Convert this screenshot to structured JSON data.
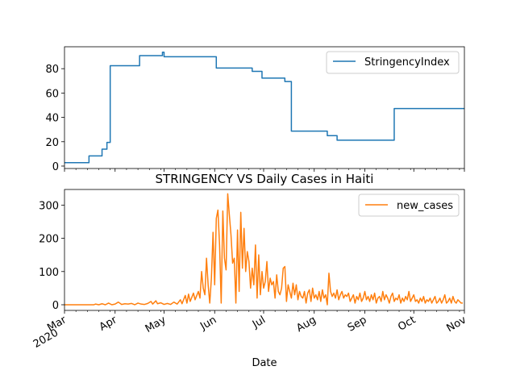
{
  "chart_data": [
    {
      "type": "line",
      "title": "",
      "xlabel": "",
      "ylabel": "",
      "xlim": [
        "2020-03-01",
        "2020-11-01"
      ],
      "ylim": [
        -2,
        98
      ],
      "yticks": [
        0,
        20,
        40,
        60,
        80
      ],
      "grid": false,
      "legend": "top-right",
      "series": [
        {
          "name": "StringencyIndex",
          "color": "#1f77b4",
          "step": true,
          "points": [
            [
              "2020-03-01",
              2.78
            ],
            [
              "2020-03-16",
              8.33
            ],
            [
              "2020-03-24",
              13.89
            ],
            [
              "2020-03-27",
              19.44
            ],
            [
              "2020-03-29",
              82.41
            ],
            [
              "2020-04-16",
              90.74
            ],
            [
              "2020-04-30",
              93.52
            ],
            [
              "2020-05-01",
              89.81
            ],
            [
              "2020-06-02",
              80.56
            ],
            [
              "2020-06-24",
              77.78
            ],
            [
              "2020-06-30",
              72.22
            ],
            [
              "2020-07-14",
              69.44
            ],
            [
              "2020-07-18",
              28.7
            ],
            [
              "2020-08-09",
              25.0
            ],
            [
              "2020-08-15",
              21.3
            ],
            [
              "2020-09-19",
              47.22
            ],
            [
              "2020-11-01",
              47.22
            ]
          ]
        }
      ]
    },
    {
      "type": "line",
      "title": "STRINGENCY VS Daily Cases in Haiti",
      "xlabel": "Date",
      "ylabel": "",
      "xlim": [
        "2020-03-01",
        "2020-11-01"
      ],
      "ylim": [
        -17,
        347
      ],
      "yticks": [
        0,
        100,
        200,
        300
      ],
      "xticks": [
        {
          "date": "2020-03-01",
          "label": "Mar",
          "sublabel": "2020"
        },
        {
          "date": "2020-04-01",
          "label": "Apr"
        },
        {
          "date": "2020-05-01",
          "label": "May"
        },
        {
          "date": "2020-06-01",
          "label": "Jun"
        },
        {
          "date": "2020-07-01",
          "label": "Jul"
        },
        {
          "date": "2020-08-01",
          "label": "Aug"
        },
        {
          "date": "2020-09-01",
          "label": "Sep"
        },
        {
          "date": "2020-10-01",
          "label": "Oct"
        },
        {
          "date": "2020-11-01",
          "label": "Nov"
        }
      ],
      "grid": false,
      "legend": "top-right",
      "series": [
        {
          "name": "new_cases",
          "color": "#ff7f0e",
          "points": [
            [
              "2020-03-01",
              0
            ],
            [
              "2020-03-19",
              0
            ],
            [
              "2020-03-20",
              2
            ],
            [
              "2020-03-22",
              0
            ],
            [
              "2020-03-24",
              3
            ],
            [
              "2020-03-26",
              0
            ],
            [
              "2020-03-28",
              5
            ],
            [
              "2020-03-30",
              0
            ],
            [
              "2020-04-01",
              2
            ],
            [
              "2020-04-03",
              8
            ],
            [
              "2020-04-05",
              1
            ],
            [
              "2020-04-07",
              3
            ],
            [
              "2020-04-09",
              2
            ],
            [
              "2020-04-11",
              4
            ],
            [
              "2020-04-13",
              0
            ],
            [
              "2020-04-15",
              5
            ],
            [
              "2020-04-17",
              2
            ],
            [
              "2020-04-19",
              1
            ],
            [
              "2020-04-21",
              4
            ],
            [
              "2020-04-23",
              10
            ],
            [
              "2020-04-24",
              2
            ],
            [
              "2020-04-26",
              12
            ],
            [
              "2020-04-27",
              3
            ],
            [
              "2020-04-29",
              6
            ],
            [
              "2020-05-01",
              1
            ],
            [
              "2020-05-03",
              4
            ],
            [
              "2020-05-05",
              1
            ],
            [
              "2020-05-07",
              8
            ],
            [
              "2020-05-09",
              2
            ],
            [
              "2020-05-11",
              15
            ],
            [
              "2020-05-12",
              3
            ],
            [
              "2020-05-14",
              28
            ],
            [
              "2020-05-15",
              5
            ],
            [
              "2020-05-16",
              32
            ],
            [
              "2020-05-17",
              10
            ],
            [
              "2020-05-19",
              35
            ],
            [
              "2020-05-20",
              15
            ],
            [
              "2020-05-22",
              40
            ],
            [
              "2020-05-23",
              20
            ],
            [
              "2020-05-24",
              100
            ],
            [
              "2020-05-25",
              50
            ],
            [
              "2020-05-26",
              30
            ],
            [
              "2020-05-27",
              140
            ],
            [
              "2020-05-28",
              60
            ],
            [
              "2020-05-29",
              5
            ],
            [
              "2020-05-30",
              80
            ],
            [
              "2020-05-31",
              218
            ],
            [
              "2020-06-01",
              60
            ],
            [
              "2020-06-02",
              260
            ],
            [
              "2020-06-03",
              285
            ],
            [
              "2020-06-04",
              180
            ],
            [
              "2020-06-05",
              5
            ],
            [
              "2020-06-06",
              282
            ],
            [
              "2020-06-07",
              140
            ],
            [
              "2020-06-08",
              105
            ],
            [
              "2020-06-09",
              334
            ],
            [
              "2020-06-10",
              270
            ],
            [
              "2020-06-11",
              210
            ],
            [
              "2020-06-12",
              125
            ],
            [
              "2020-06-13",
              140
            ],
            [
              "2020-06-14",
              5
            ],
            [
              "2020-06-15",
              225
            ],
            [
              "2020-06-16",
              40
            ],
            [
              "2020-06-17",
              278
            ],
            [
              "2020-06-18",
              110
            ],
            [
              "2020-06-19",
              230
            ],
            [
              "2020-06-20",
              100
            ],
            [
              "2020-06-21",
              160
            ],
            [
              "2020-06-22",
              130
            ],
            [
              "2020-06-23",
              50
            ],
            [
              "2020-06-24",
              110
            ],
            [
              "2020-06-25",
              60
            ],
            [
              "2020-06-26",
              180
            ],
            [
              "2020-06-27",
              20
            ],
            [
              "2020-06-28",
              150
            ],
            [
              "2020-06-29",
              30
            ],
            [
              "2020-06-30",
              100
            ],
            [
              "2020-07-01",
              50
            ],
            [
              "2020-07-02",
              70
            ],
            [
              "2020-07-03",
              130
            ],
            [
              "2020-07-04",
              40
            ],
            [
              "2020-07-05",
              80
            ],
            [
              "2020-07-06",
              60
            ],
            [
              "2020-07-07",
              70
            ],
            [
              "2020-07-08",
              20
            ],
            [
              "2020-07-09",
              90
            ],
            [
              "2020-07-10",
              40
            ],
            [
              "2020-07-11",
              30
            ],
            [
              "2020-07-12",
              50
            ],
            [
              "2020-07-13",
              110
            ],
            [
              "2020-07-14",
              115
            ],
            [
              "2020-07-15",
              10
            ],
            [
              "2020-07-16",
              60
            ],
            [
              "2020-07-17",
              40
            ],
            [
              "2020-07-18",
              20
            ],
            [
              "2020-07-19",
              65
            ],
            [
              "2020-07-20",
              30
            ],
            [
              "2020-07-21",
              60
            ],
            [
              "2020-07-22",
              15
            ],
            [
              "2020-07-23",
              40
            ],
            [
              "2020-07-24",
              25
            ],
            [
              "2020-07-25",
              20
            ],
            [
              "2020-07-26",
              40
            ],
            [
              "2020-07-27",
              5
            ],
            [
              "2020-07-28",
              35
            ],
            [
              "2020-07-29",
              45
            ],
            [
              "2020-07-30",
              10
            ],
            [
              "2020-07-31",
              50
            ],
            [
              "2020-08-01",
              20
            ],
            [
              "2020-08-02",
              30
            ],
            [
              "2020-08-03",
              15
            ],
            [
              "2020-08-04",
              40
            ],
            [
              "2020-08-05",
              10
            ],
            [
              "2020-08-06",
              45
            ],
            [
              "2020-08-07",
              20
            ],
            [
              "2020-08-08",
              30
            ],
            [
              "2020-08-09",
              0
            ],
            [
              "2020-08-10",
              95
            ],
            [
              "2020-08-11",
              40
            ],
            [
              "2020-08-12",
              25
            ],
            [
              "2020-08-13",
              35
            ],
            [
              "2020-08-14",
              20
            ],
            [
              "2020-08-15",
              45
            ],
            [
              "2020-08-16",
              15
            ],
            [
              "2020-08-17",
              30
            ],
            [
              "2020-08-18",
              40
            ],
            [
              "2020-08-19",
              20
            ],
            [
              "2020-08-20",
              30
            ],
            [
              "2020-08-21",
              25
            ],
            [
              "2020-08-22",
              35
            ],
            [
              "2020-08-23",
              10
            ],
            [
              "2020-08-24",
              20
            ],
            [
              "2020-08-25",
              30
            ],
            [
              "2020-08-26",
              5
            ],
            [
              "2020-08-27",
              25
            ],
            [
              "2020-08-28",
              15
            ],
            [
              "2020-08-29",
              35
            ],
            [
              "2020-08-30",
              10
            ],
            [
              "2020-08-31",
              20
            ],
            [
              "2020-09-01",
              40
            ],
            [
              "2020-09-02",
              15
            ],
            [
              "2020-09-03",
              25
            ],
            [
              "2020-09-04",
              10
            ],
            [
              "2020-09-05",
              30
            ],
            [
              "2020-09-06",
              15
            ],
            [
              "2020-09-07",
              35
            ],
            [
              "2020-09-08",
              5
            ],
            [
              "2020-09-09",
              20
            ],
            [
              "2020-09-10",
              25
            ],
            [
              "2020-09-11",
              10
            ],
            [
              "2020-09-12",
              40
            ],
            [
              "2020-09-13",
              15
            ],
            [
              "2020-09-14",
              30
            ],
            [
              "2020-09-15",
              20
            ],
            [
              "2020-09-16",
              5
            ],
            [
              "2020-09-17",
              25
            ],
            [
              "2020-09-18",
              35
            ],
            [
              "2020-09-19",
              10
            ],
            [
              "2020-09-20",
              20
            ],
            [
              "2020-09-21",
              15
            ],
            [
              "2020-09-22",
              30
            ],
            [
              "2020-09-23",
              5
            ],
            [
              "2020-09-24",
              20
            ],
            [
              "2020-09-25",
              10
            ],
            [
              "2020-09-26",
              25
            ],
            [
              "2020-09-27",
              15
            ],
            [
              "2020-09-28",
              40
            ],
            [
              "2020-09-29",
              10
            ],
            [
              "2020-09-30",
              20
            ],
            [
              "2020-10-01",
              30
            ],
            [
              "2020-10-02",
              10
            ],
            [
              "2020-10-03",
              15
            ],
            [
              "2020-10-04",
              5
            ],
            [
              "2020-10-05",
              20
            ],
            [
              "2020-10-06",
              10
            ],
            [
              "2020-10-07",
              25
            ],
            [
              "2020-10-08",
              5
            ],
            [
              "2020-10-09",
              15
            ],
            [
              "2020-10-10",
              10
            ],
            [
              "2020-10-11",
              20
            ],
            [
              "2020-10-12",
              5
            ],
            [
              "2020-10-13",
              15
            ],
            [
              "2020-10-14",
              25
            ],
            [
              "2020-10-15",
              5
            ],
            [
              "2020-10-16",
              10
            ],
            [
              "2020-10-17",
              20
            ],
            [
              "2020-10-18",
              5
            ],
            [
              "2020-10-19",
              15
            ],
            [
              "2020-10-20",
              30
            ],
            [
              "2020-10-21",
              5
            ],
            [
              "2020-10-22",
              10
            ],
            [
              "2020-10-23",
              20
            ],
            [
              "2020-10-24",
              5
            ],
            [
              "2020-10-25",
              25
            ],
            [
              "2020-10-26",
              10
            ],
            [
              "2020-10-27",
              5
            ],
            [
              "2020-10-28",
              15
            ],
            [
              "2020-10-29",
              10
            ],
            [
              "2020-10-30",
              5
            ],
            [
              "2020-10-31",
              5
            ]
          ]
        }
      ]
    }
  ]
}
